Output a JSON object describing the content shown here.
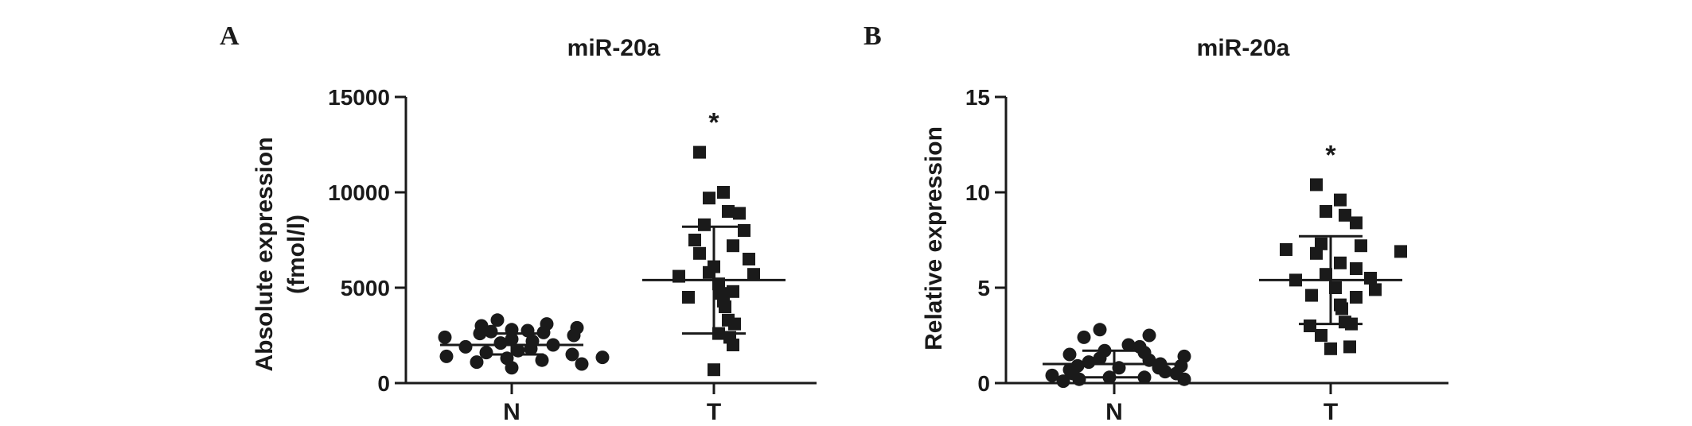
{
  "chart_data": [
    {
      "panel": "A",
      "type": "scatter",
      "title": "miR-20a",
      "ylabel_lines": [
        "Absolute expression",
        "(fmol/l)"
      ],
      "categories": [
        "N",
        "T"
      ],
      "ylim": [
        0,
        15000
      ],
      "yticks": [
        0,
        5000,
        10000,
        15000
      ],
      "significance": {
        "category": "T",
        "label": "*"
      },
      "series": [
        {
          "category": "N",
          "marker": "circle",
          "values": [
            3300,
            3100,
            3000,
            2900,
            2800,
            2750,
            2700,
            2650,
            2600,
            2500,
            2400,
            2300,
            2200,
            2100,
            2000,
            1900,
            1800,
            1700,
            1600,
            1500,
            1400,
            1350,
            1300,
            1200,
            1100,
            1000,
            800
          ],
          "mean": 2000,
          "sd": [
            1500,
            2600
          ]
        },
        {
          "category": "T",
          "marker": "square",
          "values": [
            12100,
            10000,
            9700,
            9000,
            8900,
            8300,
            8000,
            7500,
            7200,
            6800,
            6500,
            6100,
            5800,
            5700,
            5600,
            5200,
            4800,
            4700,
            4500,
            4300,
            4000,
            3300,
            3100,
            2600,
            2400,
            2000,
            700
          ],
          "mean": 5400,
          "sd": [
            2600,
            8200
          ]
        }
      ]
    },
    {
      "panel": "B",
      "type": "scatter",
      "title": "miR-20a",
      "ylabel_lines": [
        "Relative expression"
      ],
      "categories": [
        "N",
        "T"
      ],
      "ylim": [
        0,
        15
      ],
      "yticks": [
        0,
        5,
        10,
        15
      ],
      "significance": {
        "category": "T",
        "label": "*"
      },
      "series": [
        {
          "category": "N",
          "marker": "circle",
          "values": [
            2.8,
            2.5,
            2.4,
            2.0,
            1.9,
            1.7,
            1.6,
            1.5,
            1.4,
            1.3,
            1.2,
            1.1,
            1.0,
            0.9,
            0.9,
            0.8,
            0.8,
            0.7,
            0.6,
            0.5,
            0.5,
            0.4,
            0.3,
            0.3,
            0.2,
            0.2,
            0.1
          ],
          "mean": 1.0,
          "sd": [
            0.3,
            1.7
          ]
        },
        {
          "category": "T",
          "marker": "square",
          "values": [
            10.4,
            9.6,
            9.0,
            8.8,
            8.4,
            7.3,
            7.2,
            7.0,
            6.9,
            6.8,
            6.3,
            6.0,
            5.7,
            5.5,
            5.4,
            5.0,
            4.9,
            4.6,
            4.5,
            4.1,
            3.9,
            3.2,
            3.1,
            3.0,
            2.5,
            1.9,
            1.8
          ],
          "mean": 5.4,
          "sd": [
            3.1,
            7.7
          ]
        }
      ]
    }
  ]
}
